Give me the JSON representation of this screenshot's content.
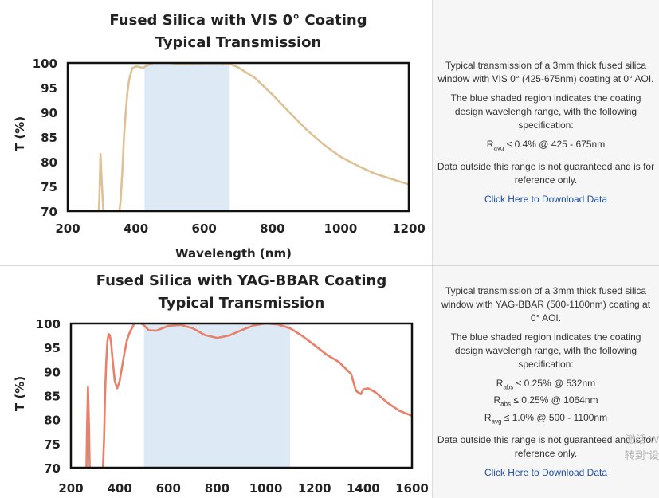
{
  "chart_data": [
    {
      "type": "line",
      "title": "Fused Silica with VIS 0° Coating",
      "subtitle": "Typical Transmission",
      "xlabel": "Wavelength (nm)",
      "ylabel": "T (%)",
      "xlim": [
        200,
        1200
      ],
      "ylim": [
        70,
        100
      ],
      "xticks": [
        200,
        400,
        600,
        800,
        1000,
        1200
      ],
      "yticks": [
        70,
        75,
        80,
        85,
        90,
        95,
        100
      ],
      "xtick_labels": [
        "200",
        "400",
        "600",
        "800",
        "1000",
        "1200"
      ],
      "ytick_labels": [
        "70",
        "75",
        "80",
        "85",
        "90",
        "95",
        "100"
      ],
      "shaded_range": [
        425,
        675
      ],
      "line_color": "#dfc196",
      "shade_color": "#dde9f5",
      "grid": false,
      "series": [
        {
          "x": [
            290,
            293,
            296,
            299,
            302,
            306,
            330,
            348,
            355,
            360,
            365,
            370,
            375,
            380,
            385,
            390,
            400,
            410,
            420,
            430,
            450,
            480,
            500,
            520,
            550,
            600,
            650,
            680,
            700,
            750,
            800,
            850,
            900,
            950,
            1000,
            1050,
            1100,
            1150,
            1200
          ],
          "y": [
            68,
            73,
            81.6,
            77,
            73,
            68,
            68,
            68,
            72,
            78,
            85,
            90,
            94,
            96.5,
            98,
            99,
            99.3,
            99.2,
            99,
            99.4,
            100,
            100.2,
            100,
            99.8,
            99.8,
            99.9,
            99.9,
            99.7,
            99.1,
            96.9,
            93.6,
            90,
            86.5,
            83.5,
            81,
            79.2,
            77.6,
            76.5,
            75.4
          ]
        }
      ]
    },
    {
      "type": "line",
      "title": "Fused Silica with YAG-BBAR Coating",
      "subtitle": "Typical Transmission",
      "xlabel": "",
      "ylabel": "T (%)",
      "xlim": [
        200,
        1600
      ],
      "ylim": [
        70,
        100
      ],
      "xticks": [
        200,
        400,
        600,
        800,
        1000,
        1200,
        1400,
        1600
      ],
      "yticks": [
        70,
        75,
        80,
        85,
        90,
        95,
        100
      ],
      "xtick_labels": [
        "200",
        "400",
        "600",
        "800",
        "1000",
        "1200",
        "1400",
        "1600"
      ],
      "ytick_labels": [
        "70",
        "75",
        "80",
        "85",
        "90",
        "95",
        "100"
      ],
      "shaded_range": [
        500,
        1100
      ],
      "line_color": "#e8806a",
      "shade_color": "#dde9f5",
      "grid": false,
      "series": [
        {
          "x": [
            263,
            266,
            270,
            274,
            278,
            330,
            336,
            340,
            345,
            350,
            355,
            360,
            365,
            370,
            380,
            390,
            400,
            410,
            420,
            430,
            440,
            460,
            480,
            500,
            520,
            550,
            600,
            650,
            700,
            750,
            800,
            850,
            900,
            950,
            1000,
            1050,
            1100,
            1150,
            1200,
            1250,
            1300,
            1350,
            1370,
            1390,
            1400,
            1420,
            1450,
            1500,
            1550,
            1600
          ],
          "y": [
            68,
            78,
            86.8,
            79,
            68,
            68,
            76,
            85,
            92,
            96.5,
            97.8,
            97.5,
            96,
            93,
            88,
            86.5,
            88,
            91,
            94,
            96.5,
            98,
            100,
            100.3,
            99.6,
            98.6,
            98.5,
            99.5,
            99.7,
            99,
            97.6,
            97,
            97.5,
            98.6,
            99.6,
            100,
            99.8,
            99,
            97.4,
            95.5,
            93.5,
            92,
            89.5,
            86,
            85.3,
            86.3,
            86.5,
            85.7,
            83.5,
            81.8,
            80.8
          ]
        }
      ]
    }
  ],
  "panels": [
    {
      "description_1": "Typical transmission of a 3mm thick fused silica window with VIS 0° (425-675nm) coating at 0° AOI.",
      "description_2": "The blue shaded region indicates the coating design wavelengh range, with the following specification:",
      "specs": [
        {
          "sym": "R",
          "sub": "avg",
          "text": " ≤ 0.4% @ 425 - 675nm"
        }
      ],
      "note": "Data outside this range is not guaranteed and is for reference only.",
      "link_label": "Click Here to Download Data"
    },
    {
      "description_1": "Typical transmission of a 3mm thick fused silica window with YAG-BBAR (500-1100nm) coating at 0° AOI.",
      "description_2": "The blue shaded region indicates the coating design wavelengh range, with the following specification:",
      "specs": [
        {
          "sym": "R",
          "sub": "abs",
          "text": " ≤ 0.25% @ 532nm"
        },
        {
          "sym": "R",
          "sub": "abs",
          "text": " ≤ 0.25% @ 1064nm"
        },
        {
          "sym": "R",
          "sub": "avg",
          "text": " ≤ 1.0% @ 500 - 1100nm"
        }
      ],
      "note": "Data outside this range is not guaranteed and is for reference only.",
      "link_label": "Click Here to Download Data"
    }
  ],
  "watermark": {
    "line1": "激活 W",
    "line2": "转到“设"
  }
}
